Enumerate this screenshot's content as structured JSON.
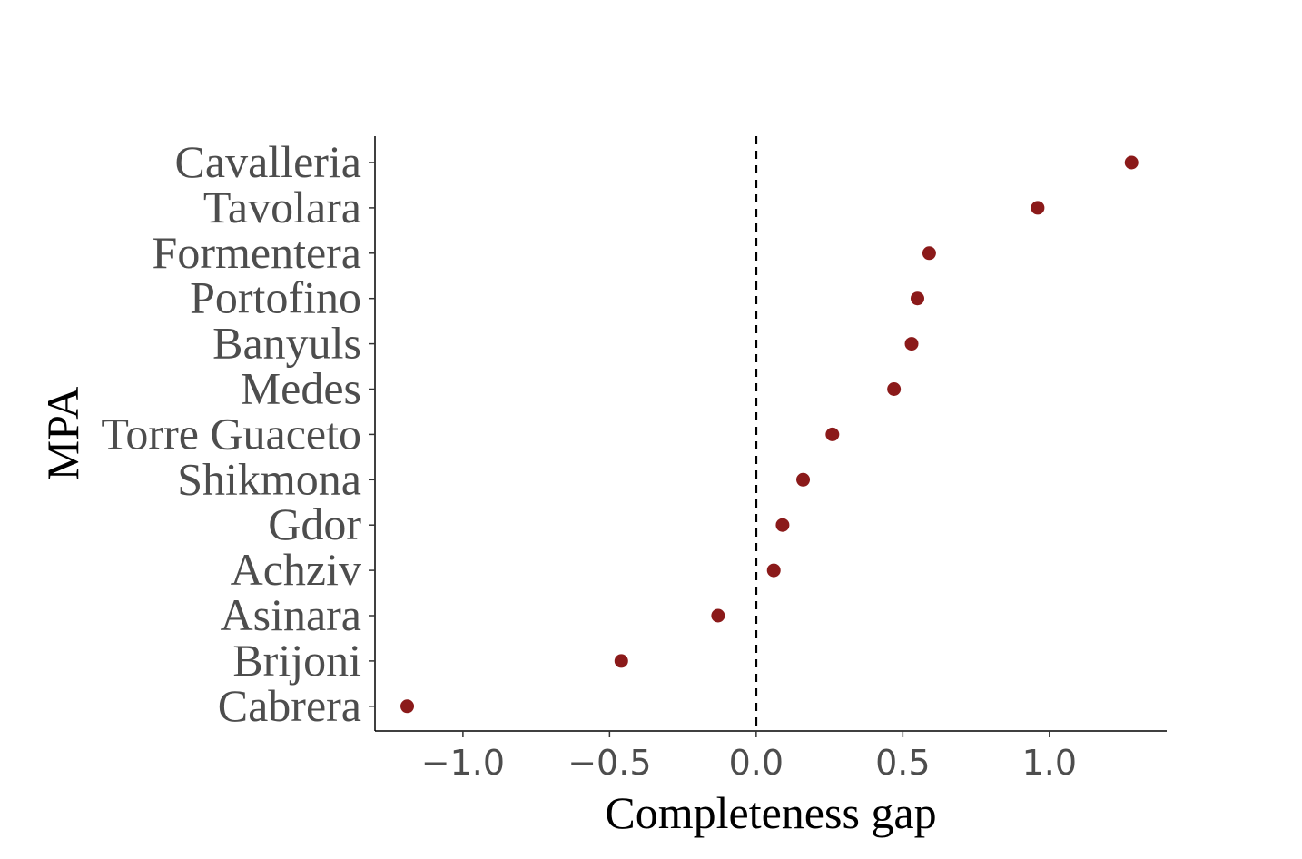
{
  "chart_data": {
    "type": "scatter",
    "xlabel": "Completeness gap",
    "ylabel": "MPA",
    "categories": [
      "Cavalleria",
      "Tavolara",
      "Formentera",
      "Portofino",
      "Banyuls",
      "Medes",
      "Torre Guaceto",
      "Shikmona",
      "Gdor",
      "Achziv",
      "Asinara",
      "Brijoni",
      "Cabrera"
    ],
    "values": [
      1.28,
      0.96,
      0.59,
      0.55,
      0.53,
      0.47,
      0.26,
      0.16,
      0.09,
      0.06,
      -0.13,
      -0.46,
      -1.19
    ],
    "xlim": [
      -1.3,
      1.4
    ],
    "xticks": [
      -1.0,
      -0.5,
      0.0,
      0.5,
      1.0
    ],
    "xtick_labels": [
      "−1.0",
      "−0.5",
      "0.0",
      "0.5",
      "1.0"
    ],
    "reference_line": {
      "x": 0,
      "style": "dashed"
    },
    "grid": false,
    "point_color": "#8b1a1a"
  }
}
